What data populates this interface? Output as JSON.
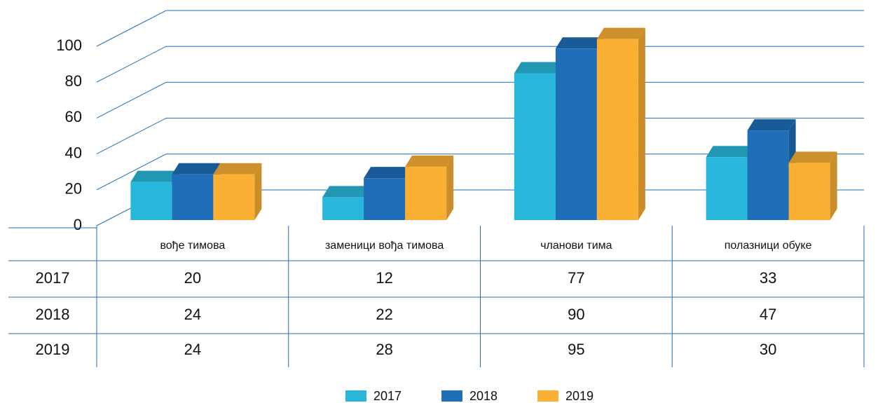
{
  "chart_data": {
    "type": "bar3d",
    "categories": [
      "вође тимова",
      "заменици вођа тимова",
      "чланови тима",
      "полазници обуке"
    ],
    "series": [
      {
        "name": "2017",
        "color": "#29b8dc",
        "values": [
          20,
          12,
          77,
          33
        ]
      },
      {
        "name": "2018",
        "color": "#1f6fb8",
        "values": [
          24,
          22,
          90,
          47
        ]
      },
      {
        "name": "2019",
        "color": "#fbb034",
        "values": [
          24,
          28,
          95,
          30
        ]
      }
    ],
    "ylim": [
      0,
      100
    ],
    "yticks": [
      0,
      20,
      40,
      60,
      80,
      100
    ],
    "grid": true,
    "legend": "bottom"
  }
}
